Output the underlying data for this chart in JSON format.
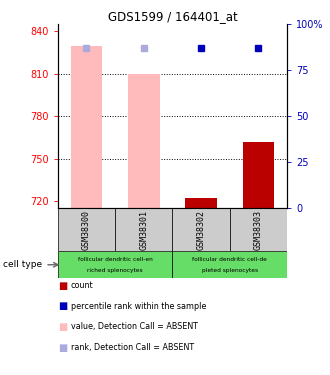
{
  "title": "GDS1599 / 164401_at",
  "samples": [
    "GSM38300",
    "GSM38301",
    "GSM38302",
    "GSM38303"
  ],
  "ylim_left": [
    715,
    845
  ],
  "ylim_right": [
    0,
    100
  ],
  "yticks_left": [
    720,
    750,
    780,
    810,
    840
  ],
  "yticks_right": [
    0,
    25,
    50,
    75,
    100
  ],
  "ytick_labels_right": [
    "0",
    "25",
    "50",
    "75",
    "100%"
  ],
  "bars_pink": [
    830,
    810,
    null,
    null
  ],
  "bars_red": [
    null,
    null,
    722,
    762
  ],
  "dot_blue_rank": [
    null,
    null,
    87,
    87
  ],
  "dot_lightblue_rank": [
    87,
    87,
    null,
    null
  ],
  "bar_width": 0.55,
  "pink_bar_color": "#ffbbbb",
  "red_bar_color": "#bb0000",
  "blue_dot_color": "#0000bb",
  "lightblue_dot_color": "#aaaadd",
  "grid_dotted_at": [
    750,
    780,
    810
  ],
  "group_labels_top": [
    "follicular dendritic cell-en",
    "follicular dendritic cell-de"
  ],
  "group_labels_bot": [
    "riched splenocytes",
    "pleted splenocytes"
  ],
  "group_color": "#66dd66",
  "sample_box_color": "#cccccc",
  "legend_items": [
    {
      "color": "#bb0000",
      "label": "count"
    },
    {
      "color": "#0000bb",
      "label": "percentile rank within the sample"
    },
    {
      "color": "#ffbbbb",
      "label": "value, Detection Call = ABSENT"
    },
    {
      "color": "#aaaadd",
      "label": "rank, Detection Call = ABSENT"
    }
  ],
  "cell_type_label": "cell type"
}
